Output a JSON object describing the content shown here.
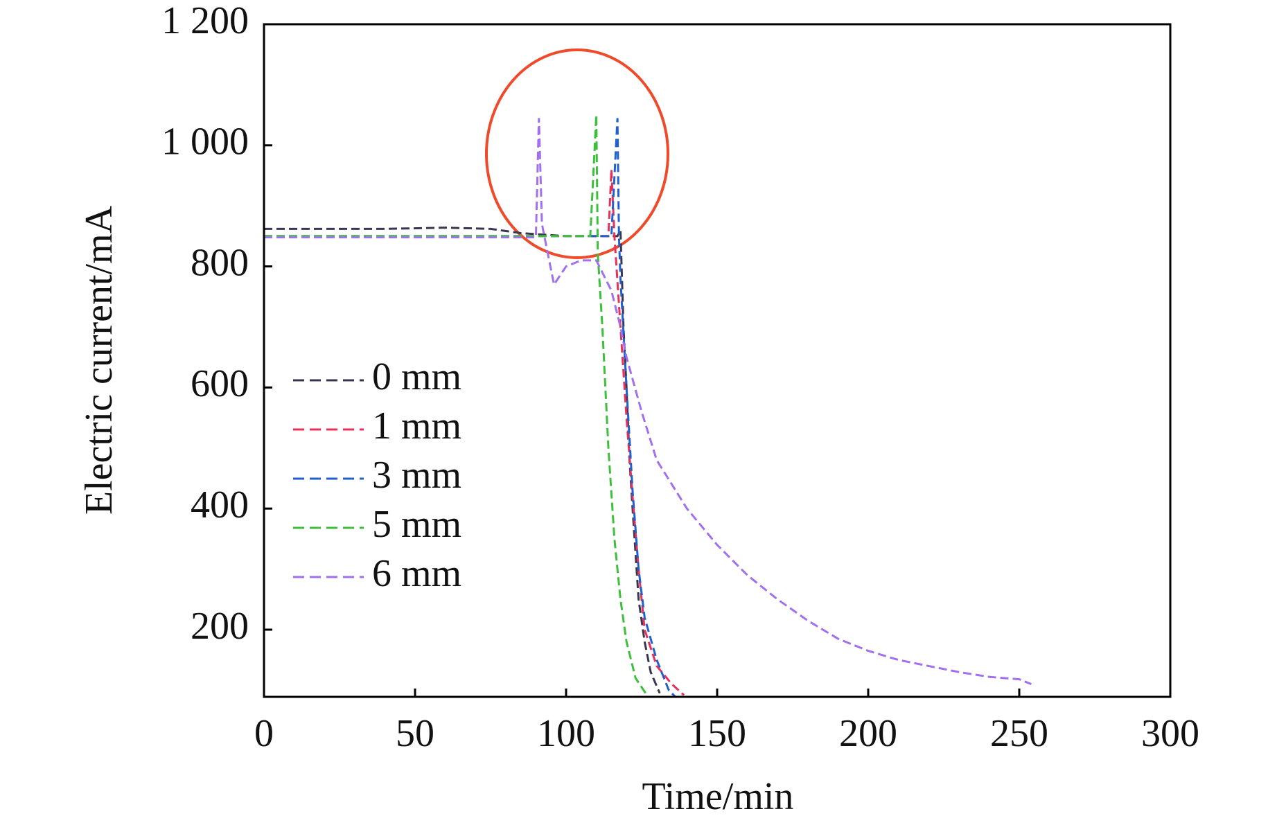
{
  "chart_data": {
    "type": "line",
    "x_label": "Time/min",
    "y_label": "Electric current/mA",
    "xlim": [
      0,
      300
    ],
    "ylim": [
      89,
      1200
    ],
    "xticks": [
      0,
      50,
      100,
      150,
      200,
      250,
      300
    ],
    "yticks": [
      200,
      400,
      600,
      800,
      {
        "value": 1000,
        "label": "1 000"
      },
      {
        "value": 1200,
        "label": "1 200"
      }
    ],
    "legend": "left",
    "series": [
      {
        "name": "0 mm",
        "color": "#3a3550",
        "x": [
          0,
          20,
          40,
          60,
          75,
          85,
          100,
          110,
          115,
          117,
          118,
          119,
          120,
          121,
          122,
          124,
          126,
          128,
          131
        ],
        "values": [
          862,
          862,
          862,
          864,
          862,
          855,
          850,
          850,
          850,
          850,
          860,
          700,
          600,
          480,
          400,
          250,
          180,
          130,
          95
        ]
      },
      {
        "name": "1 mm",
        "color": "#e8305a",
        "x": [
          0,
          40,
          80,
          114,
          115,
          116,
          118,
          120,
          122,
          124,
          126,
          130,
          135,
          139
        ],
        "values": [
          850,
          850,
          850,
          850,
          960,
          850,
          700,
          550,
          420,
          300,
          200,
          140,
          110,
          92
        ]
      },
      {
        "name": "3 mm",
        "color": "#2060d0",
        "x": [
          0,
          40,
          80,
          115,
          117,
          117.5,
          118,
          120,
          122,
          124,
          126,
          130,
          134,
          136
        ],
        "values": [
          850,
          850,
          850,
          850,
          1045,
          850,
          780,
          600,
          430,
          300,
          220,
          150,
          100,
          90
        ]
      },
      {
        "name": "5 mm",
        "color": "#3cc03c",
        "x": [
          0,
          40,
          80,
          108,
          110,
          110.5,
          112,
          114,
          116,
          118,
          120,
          123,
          127
        ],
        "values": [
          850,
          850,
          850,
          850,
          1050,
          820,
          700,
          500,
          350,
          250,
          180,
          120,
          90
        ]
      },
      {
        "name": "6 mm",
        "color": "#a070f0",
        "x": [
          0,
          40,
          90,
          91,
          92,
          96,
          100,
          105,
          110,
          115,
          118,
          120,
          125,
          130,
          140,
          150,
          160,
          170,
          180,
          190,
          200,
          210,
          220,
          230,
          240,
          250,
          254
        ],
        "values": [
          848,
          848,
          848,
          1045,
          870,
          770,
          800,
          810,
          810,
          760,
          700,
          650,
          560,
          480,
          400,
          340,
          290,
          250,
          215,
          185,
          165,
          150,
          140,
          130,
          122,
          118,
          110
        ]
      }
    ]
  }
}
